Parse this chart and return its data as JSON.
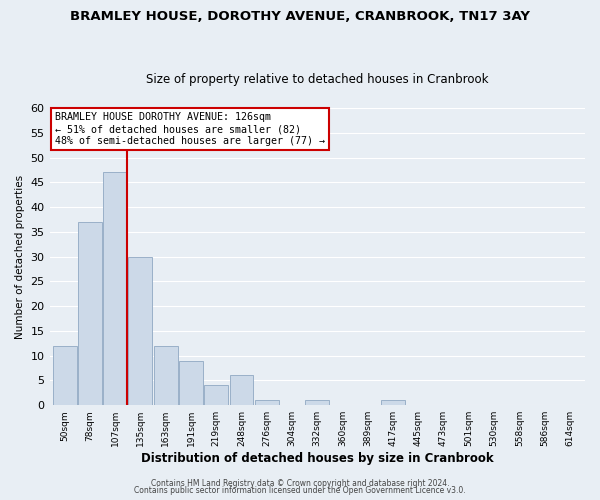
{
  "title": "BRAMLEY HOUSE, DOROTHY AVENUE, CRANBROOK, TN17 3AY",
  "subtitle": "Size of property relative to detached houses in Cranbrook",
  "xlabel": "Distribution of detached houses by size in Cranbrook",
  "ylabel": "Number of detached properties",
  "bin_labels": [
    "50sqm",
    "78sqm",
    "107sqm",
    "135sqm",
    "163sqm",
    "191sqm",
    "219sqm",
    "248sqm",
    "276sqm",
    "304sqm",
    "332sqm",
    "360sqm",
    "389sqm",
    "417sqm",
    "445sqm",
    "473sqm",
    "501sqm",
    "530sqm",
    "558sqm",
    "586sqm",
    "614sqm"
  ],
  "bar_heights": [
    12,
    37,
    47,
    30,
    12,
    9,
    4,
    6,
    1,
    0,
    1,
    0,
    0,
    1,
    0,
    0,
    0,
    0,
    0,
    0,
    0
  ],
  "bar_color": "#ccd9e8",
  "bar_edge_color": "#9ab0c8",
  "vline_color": "#cc0000",
  "ylim": [
    0,
    60
  ],
  "yticks": [
    0,
    5,
    10,
    15,
    20,
    25,
    30,
    35,
    40,
    45,
    50,
    55,
    60
  ],
  "annotation_text": "BRAMLEY HOUSE DOROTHY AVENUE: 126sqm\n← 51% of detached houses are smaller (82)\n48% of semi-detached houses are larger (77) →",
  "annotation_box_color": "#ffffff",
  "annotation_box_edge": "#cc0000",
  "footer_line1": "Contains HM Land Registry data © Crown copyright and database right 2024.",
  "footer_line2": "Contains public sector information licensed under the Open Government Licence v3.0.",
  "background_color": "#e8eef4",
  "grid_color": "#ffffff"
}
